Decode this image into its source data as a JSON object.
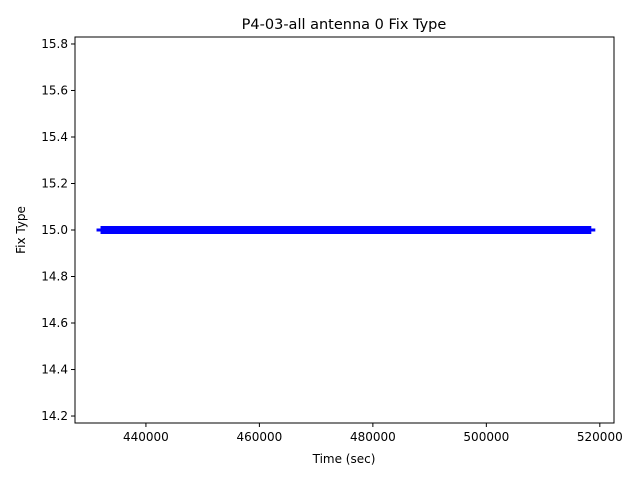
{
  "chart_data": {
    "type": "scatter",
    "title": "P4-03-all antenna 0 Fix Type",
    "xlabel": "Time (sec)",
    "ylabel": "Fix Type",
    "xlim": [
      427500,
      522500
    ],
    "ylim": [
      14.17,
      15.83
    ],
    "x_ticks": [
      440000,
      460000,
      480000,
      500000,
      520000
    ],
    "y_ticks": [
      14.2,
      14.4,
      14.6,
      14.8,
      15.0,
      15.2,
      15.4,
      15.6,
      15.8
    ],
    "grid": false,
    "series": [
      {
        "color": "#0000ff",
        "x_start": 432000,
        "x_end": 518500,
        "y": 15.0
      }
    ]
  }
}
